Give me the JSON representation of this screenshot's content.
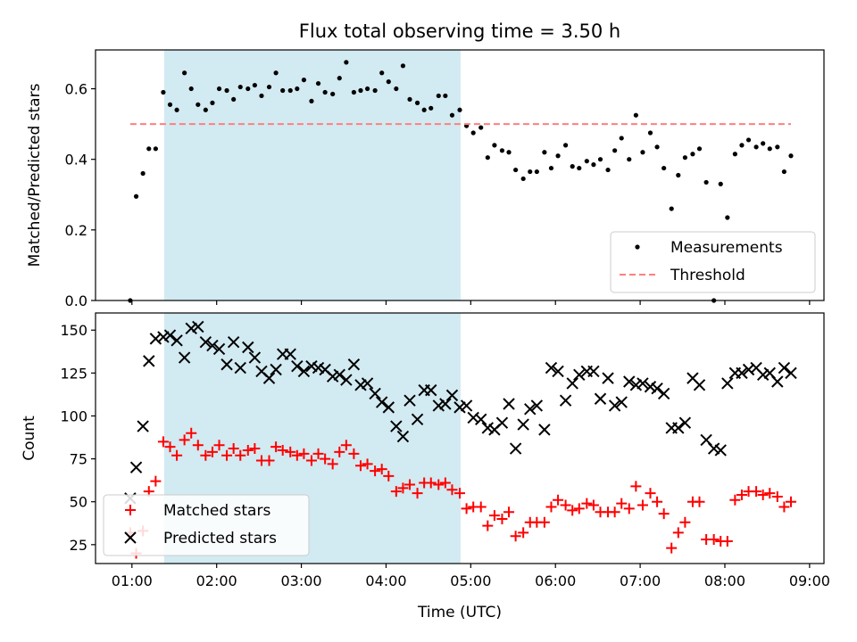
{
  "chart_data": [
    {
      "type": "scatter",
      "title": "Flux total observing time = 3.50 h",
      "ylabel": "Matched/Predicted stars",
      "xlabel": "",
      "xlim": [
        0.57,
        9.17
      ],
      "ylim": [
        0,
        0.71
      ],
      "yticks": [
        0.0,
        0.2,
        0.4,
        0.6
      ],
      "ytick_labels": [
        "0.0",
        "0.2",
        "0.4",
        "0.6"
      ],
      "xticks": [
        1,
        2,
        3,
        4,
        5,
        6,
        7,
        8,
        9
      ],
      "xticks_labeled": false,
      "shaded_region": {
        "x0": 1.38,
        "x1": 4.88,
        "color": "#add8e6"
      },
      "grid": false,
      "legend_placement": "lower-right",
      "series": [
        {
          "name": "Measurements",
          "style": "dots",
          "color": "#000000",
          "x": [
            0.98,
            1.05,
            1.13,
            1.2,
            1.28,
            1.37,
            1.45,
            1.53,
            1.62,
            1.7,
            1.78,
            1.87,
            1.95,
            2.03,
            2.12,
            2.2,
            2.28,
            2.37,
            2.45,
            2.53,
            2.62,
            2.7,
            2.78,
            2.87,
            2.95,
            3.03,
            3.12,
            3.2,
            3.28,
            3.37,
            3.45,
            3.53,
            3.62,
            3.7,
            3.78,
            3.87,
            3.95,
            4.03,
            4.12,
            4.2,
            4.28,
            4.37,
            4.45,
            4.53,
            4.62,
            4.7,
            4.78,
            4.87,
            4.95,
            5.03,
            5.12,
            5.2,
            5.28,
            5.37,
            5.45,
            5.53,
            5.62,
            5.7,
            5.78,
            5.87,
            5.95,
            6.03,
            6.12,
            6.2,
            6.28,
            6.37,
            6.45,
            6.53,
            6.62,
            6.7,
            6.78,
            6.87,
            6.95,
            7.03,
            7.12,
            7.2,
            7.28,
            7.37,
            7.45,
            7.53,
            7.62,
            7.7,
            7.78,
            7.87,
            7.95,
            8.03,
            8.12,
            8.2,
            8.28,
            8.37,
            8.45,
            8.53,
            8.62,
            8.7,
            8.78
          ],
          "y": [
            0.0,
            0.295,
            0.36,
            0.43,
            0.43,
            0.59,
            0.555,
            0.54,
            0.645,
            0.6,
            0.555,
            0.54,
            0.56,
            0.6,
            0.595,
            0.57,
            0.605,
            0.6,
            0.61,
            0.58,
            0.605,
            0.645,
            0.595,
            0.595,
            0.6,
            0.625,
            0.565,
            0.615,
            0.59,
            0.585,
            0.63,
            0.675,
            0.59,
            0.595,
            0.6,
            0.595,
            0.645,
            0.62,
            0.6,
            0.665,
            0.57,
            0.56,
            0.54,
            0.545,
            0.58,
            0.58,
            0.525,
            0.54,
            0.495,
            0.475,
            0.49,
            0.405,
            0.44,
            0.425,
            0.42,
            0.37,
            0.345,
            0.365,
            0.365,
            0.42,
            0.375,
            0.41,
            0.44,
            0.38,
            0.375,
            0.395,
            0.385,
            0.4,
            0.37,
            0.425,
            0.46,
            0.4,
            0.525,
            0.42,
            0.475,
            0.435,
            0.375,
            0.26,
            0.355,
            0.405,
            0.415,
            0.43,
            0.335,
            0.0,
            0.33,
            0.235,
            0.415,
            0.44,
            0.455,
            0.435,
            0.445,
            0.43,
            0.435,
            0.365,
            0.41
          ]
        },
        {
          "name": "Threshold",
          "style": "dashed-line",
          "color": "#ff7f7f",
          "x": [
            0.98,
            8.78
          ],
          "y": [
            0.5,
            0.5
          ]
        }
      ]
    },
    {
      "type": "scatter",
      "title": "",
      "ylabel": "Count",
      "xlabel": "Time (UTC)",
      "xlim": [
        0.57,
        9.17
      ],
      "ylim": [
        14,
        160
      ],
      "yticks": [
        25,
        50,
        75,
        100,
        125,
        150
      ],
      "ytick_labels": [
        "25",
        "50",
        "75",
        "100",
        "125",
        "150"
      ],
      "xticks": [
        1,
        2,
        3,
        4,
        5,
        6,
        7,
        8,
        9
      ],
      "xtick_labels": [
        "01:00",
        "02:00",
        "03:00",
        "04:00",
        "05:00",
        "06:00",
        "07:00",
        "08:00",
        "09:00"
      ],
      "xticks_labeled": true,
      "shaded_region": {
        "x0": 1.38,
        "x1": 4.88,
        "color": "#add8e6"
      },
      "grid": false,
      "legend_placement": "lower-left",
      "series": [
        {
          "name": "Matched stars",
          "style": "plus",
          "color": "#ff0000",
          "x": [
            0.98,
            1.05,
            1.13,
            1.2,
            1.28,
            1.37,
            1.45,
            1.53,
            1.62,
            1.7,
            1.78,
            1.87,
            1.95,
            2.03,
            2.12,
            2.2,
            2.28,
            2.37,
            2.45,
            2.53,
            2.62,
            2.7,
            2.78,
            2.87,
            2.95,
            3.03,
            3.12,
            3.2,
            3.28,
            3.37,
            3.45,
            3.53,
            3.62,
            3.7,
            3.78,
            3.87,
            3.95,
            4.03,
            4.12,
            4.2,
            4.28,
            4.37,
            4.45,
            4.53,
            4.62,
            4.7,
            4.78,
            4.87,
            4.95,
            5.03,
            5.12,
            5.2,
            5.28,
            5.37,
            5.45,
            5.53,
            5.62,
            5.7,
            5.78,
            5.87,
            5.95,
            6.03,
            6.12,
            6.2,
            6.28,
            6.37,
            6.45,
            6.53,
            6.62,
            6.7,
            6.78,
            6.87,
            6.95,
            7.03,
            7.12,
            7.2,
            7.28,
            7.37,
            7.45,
            7.53,
            7.62,
            7.7,
            7.78,
            7.87,
            7.95,
            8.03,
            8.12,
            8.2,
            8.28,
            8.37,
            8.45,
            8.53,
            8.62,
            8.7,
            8.78
          ],
          "y": [
            32,
            20,
            33,
            56,
            62,
            85,
            82,
            77,
            86,
            90,
            83,
            77,
            79,
            83,
            77,
            81,
            77,
            80,
            81,
            74,
            74,
            82,
            80,
            79,
            77,
            78,
            74,
            78,
            75,
            72,
            79,
            83,
            78,
            71,
            72,
            68,
            69,
            65,
            56,
            58,
            60,
            55,
            61,
            61,
            60,
            61,
            57,
            55,
            46,
            47,
            47,
            36,
            42,
            40,
            44,
            30,
            32,
            38,
            38,
            38,
            47,
            51,
            48,
            45,
            46,
            49,
            48,
            44,
            44,
            44,
            49,
            46,
            59,
            48,
            55,
            50,
            43,
            23,
            32,
            38,
            50,
            50,
            28,
            28,
            27,
            27,
            51,
            54,
            56,
            56,
            54,
            55,
            53,
            47,
            50
          ]
        },
        {
          "name": "Predicted stars",
          "style": "x",
          "color": "#000000",
          "x": [
            0.98,
            1.05,
            1.13,
            1.2,
            1.28,
            1.37,
            1.45,
            1.53,
            1.62,
            1.7,
            1.78,
            1.87,
            1.95,
            2.03,
            2.12,
            2.2,
            2.28,
            2.37,
            2.45,
            2.53,
            2.62,
            2.7,
            2.78,
            2.87,
            2.95,
            3.03,
            3.12,
            3.2,
            3.28,
            3.37,
            3.45,
            3.53,
            3.62,
            3.7,
            3.78,
            3.87,
            3.95,
            4.03,
            4.12,
            4.2,
            4.28,
            4.37,
            4.45,
            4.53,
            4.62,
            4.7,
            4.78,
            4.87,
            4.95,
            5.03,
            5.12,
            5.2,
            5.28,
            5.37,
            5.45,
            5.53,
            5.62,
            5.7,
            5.78,
            5.87,
            5.95,
            6.03,
            6.12,
            6.2,
            6.28,
            6.37,
            6.45,
            6.53,
            6.62,
            6.7,
            6.78,
            6.87,
            6.95,
            7.03,
            7.12,
            7.2,
            7.28,
            7.37,
            7.45,
            7.53,
            7.62,
            7.7,
            7.78,
            7.87,
            7.95,
            8.03,
            8.12,
            8.2,
            8.28,
            8.37,
            8.45,
            8.53,
            8.62,
            8.7,
            8.78
          ],
          "y": [
            52,
            70,
            94,
            132,
            145,
            146,
            147,
            144,
            134,
            151,
            152,
            143,
            141,
            139,
            130,
            143,
            128,
            140,
            134,
            126,
            122,
            127,
            136,
            136,
            129,
            126,
            129,
            128,
            127,
            123,
            124,
            121,
            130,
            118,
            119,
            113,
            108,
            105,
            94,
            88,
            109,
            98,
            115,
            115,
            106,
            107,
            112,
            105,
            106,
            99,
            98,
            93,
            92,
            96,
            107,
            81,
            95,
            104,
            106,
            92,
            128,
            126,
            109,
            119,
            124,
            126,
            126,
            110,
            122,
            106,
            108,
            120,
            118,
            119,
            117,
            116,
            113,
            93,
            93,
            96,
            122,
            118,
            86,
            81,
            80,
            119,
            125,
            125,
            127,
            128,
            124,
            125,
            120,
            128,
            125
          ]
        }
      ]
    }
  ]
}
